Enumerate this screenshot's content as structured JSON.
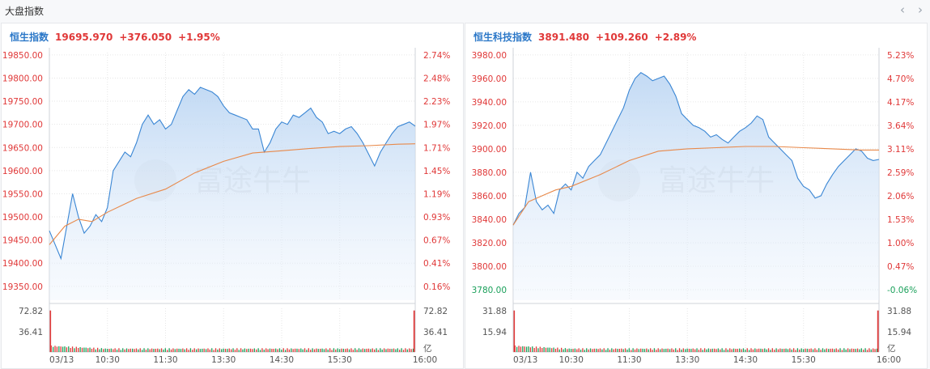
{
  "header": {
    "title": "大盘指数",
    "prev_icon": "chevron-left-icon",
    "next_icon": "chevron-right-icon"
  },
  "watermark": "富途牛牛",
  "colors": {
    "up": "#e03838",
    "down": "#1aa05a",
    "line": "#3a86d4",
    "avg": "#e8894a",
    "grid": "#e6e6e6",
    "name": "#2c78c8"
  },
  "chart_data": [
    {
      "type": "line",
      "name": "恒生指数",
      "last": "19695.970",
      "change": "+376.050",
      "change_pct": "+1.95%",
      "y_ticks": [
        "19850.00",
        "19800.00",
        "19750.00",
        "19700.00",
        "19650.00",
        "19600.00",
        "19550.00",
        "19500.00",
        "19450.00",
        "19400.00",
        "19350.00"
      ],
      "pct_ticks": [
        "2.74%",
        "2.48%",
        "2.23%",
        "1.97%",
        "1.71%",
        "1.45%",
        "1.19%",
        "0.93%",
        "0.67%",
        "0.41%",
        "0.16%"
      ],
      "pct_colors": [
        "up",
        "up",
        "up",
        "up",
        "up",
        "up",
        "up",
        "up",
        "up",
        "up",
        "up"
      ],
      "ylim": [
        19320,
        19855
      ],
      "x_ticks": [
        "03/13",
        "10:30",
        "11:30",
        "13:30",
        "14:30",
        "15:30",
        "16:00"
      ],
      "price": [
        [
          0,
          19470
        ],
        [
          3,
          19440
        ],
        [
          6,
          19410
        ],
        [
          9,
          19480
        ],
        [
          12,
          19550
        ],
        [
          15,
          19500
        ],
        [
          18,
          19465
        ],
        [
          21,
          19480
        ],
        [
          24,
          19505
        ],
        [
          27,
          19490
        ],
        [
          30,
          19520
        ],
        [
          33,
          19600
        ],
        [
          36,
          19620
        ],
        [
          39,
          19640
        ],
        [
          42,
          19630
        ],
        [
          45,
          19660
        ],
        [
          48,
          19700
        ],
        [
          51,
          19720
        ],
        [
          54,
          19700
        ],
        [
          57,
          19710
        ],
        [
          60,
          19690
        ],
        [
          63,
          19700
        ],
        [
          66,
          19730
        ],
        [
          69,
          19760
        ],
        [
          72,
          19775
        ],
        [
          75,
          19765
        ],
        [
          78,
          19780
        ],
        [
          81,
          19775
        ],
        [
          84,
          19770
        ],
        [
          87,
          19760
        ],
        [
          90,
          19740
        ],
        [
          93,
          19725
        ],
        [
          96,
          19720
        ],
        [
          99,
          19715
        ],
        [
          102,
          19710
        ],
        [
          105,
          19690
        ],
        [
          108,
          19690
        ],
        [
          111,
          19640
        ],
        [
          114,
          19660
        ],
        [
          117,
          19690
        ],
        [
          120,
          19705
        ],
        [
          123,
          19700
        ],
        [
          126,
          19720
        ],
        [
          129,
          19715
        ],
        [
          132,
          19725
        ],
        [
          135,
          19735
        ],
        [
          138,
          19715
        ],
        [
          141,
          19705
        ],
        [
          144,
          19680
        ],
        [
          147,
          19685
        ],
        [
          150,
          19680
        ],
        [
          153,
          19690
        ],
        [
          156,
          19695
        ],
        [
          159,
          19680
        ],
        [
          162,
          19660
        ],
        [
          165,
          19635
        ],
        [
          168,
          19610
        ],
        [
          171,
          19640
        ],
        [
          174,
          19660
        ],
        [
          177,
          19680
        ],
        [
          180,
          19695
        ],
        [
          183,
          19700
        ],
        [
          186,
          19705
        ],
        [
          189,
          19696
        ]
      ],
      "avg": [
        [
          0,
          19440
        ],
        [
          8,
          19480
        ],
        [
          15,
          19495
        ],
        [
          22,
          19490
        ],
        [
          30,
          19510
        ],
        [
          45,
          19540
        ],
        [
          60,
          19560
        ],
        [
          75,
          19595
        ],
        [
          90,
          19620
        ],
        [
          105,
          19638
        ],
        [
          120,
          19643
        ],
        [
          135,
          19648
        ],
        [
          150,
          19652
        ],
        [
          165,
          19654
        ],
        [
          180,
          19657
        ],
        [
          189,
          19658
        ]
      ],
      "vol_ticks": [
        "72.82",
        "36.41"
      ],
      "vol_max": 72.82,
      "vol_unit": "亿",
      "vol_first": 72.82,
      "vol_last": 72.82
    },
    {
      "type": "line",
      "name": "恒生科技指数",
      "last": "3891.480",
      "change": "+109.260",
      "change_pct": "+2.89%",
      "y_ticks": [
        "3980.00",
        "3960.00",
        "3940.00",
        "3920.00",
        "3900.00",
        "3880.00",
        "3860.00",
        "3840.00",
        "3820.00",
        "3800.00",
        "3780.00"
      ],
      "pct_ticks": [
        "5.23%",
        "4.70%",
        "4.17%",
        "3.64%",
        "3.11%",
        "2.59%",
        "2.06%",
        "1.53%",
        "1.00%",
        "0.47%",
        "-0.06%"
      ],
      "pct_colors": [
        "up",
        "up",
        "up",
        "up",
        "up",
        "up",
        "up",
        "up",
        "up",
        "up",
        "down"
      ],
      "ylim": [
        3771,
        3982
      ],
      "x_ticks": [
        "03/13",
        "10:30",
        "11:30",
        "13:30",
        "14:30",
        "15:30",
        "16:00"
      ],
      "price": [
        [
          0,
          3835
        ],
        [
          3,
          3845
        ],
        [
          6,
          3850
        ],
        [
          9,
          3880
        ],
        [
          12,
          3855
        ],
        [
          15,
          3848
        ],
        [
          18,
          3852
        ],
        [
          21,
          3845
        ],
        [
          24,
          3865
        ],
        [
          27,
          3870
        ],
        [
          30,
          3865
        ],
        [
          33,
          3880
        ],
        [
          36,
          3875
        ],
        [
          39,
          3885
        ],
        [
          42,
          3890
        ],
        [
          45,
          3895
        ],
        [
          48,
          3905
        ],
        [
          51,
          3915
        ],
        [
          54,
          3925
        ],
        [
          57,
          3935
        ],
        [
          60,
          3950
        ],
        [
          63,
          3960
        ],
        [
          66,
          3965
        ],
        [
          69,
          3962
        ],
        [
          72,
          3958
        ],
        [
          75,
          3960
        ],
        [
          78,
          3962
        ],
        [
          81,
          3955
        ],
        [
          84,
          3945
        ],
        [
          87,
          3930
        ],
        [
          90,
          3925
        ],
        [
          93,
          3920
        ],
        [
          96,
          3918
        ],
        [
          99,
          3915
        ],
        [
          102,
          3910
        ],
        [
          105,
          3912
        ],
        [
          108,
          3908
        ],
        [
          111,
          3905
        ],
        [
          114,
          3910
        ],
        [
          117,
          3915
        ],
        [
          120,
          3918
        ],
        [
          123,
          3922
        ],
        [
          126,
          3928
        ],
        [
          129,
          3925
        ],
        [
          132,
          3910
        ],
        [
          135,
          3905
        ],
        [
          138,
          3900
        ],
        [
          141,
          3895
        ],
        [
          144,
          3890
        ],
        [
          147,
          3875
        ],
        [
          150,
          3868
        ],
        [
          153,
          3865
        ],
        [
          156,
          3858
        ],
        [
          159,
          3860
        ],
        [
          162,
          3870
        ],
        [
          165,
          3878
        ],
        [
          168,
          3885
        ],
        [
          171,
          3890
        ],
        [
          174,
          3895
        ],
        [
          177,
          3900
        ],
        [
          180,
          3898
        ],
        [
          183,
          3892
        ],
        [
          186,
          3890
        ],
        [
          189,
          3891
        ]
      ],
      "avg": [
        [
          0,
          3835
        ],
        [
          8,
          3855
        ],
        [
          15,
          3860
        ],
        [
          22,
          3865
        ],
        [
          30,
          3868
        ],
        [
          45,
          3878
        ],
        [
          60,
          3890
        ],
        [
          75,
          3898
        ],
        [
          90,
          3900
        ],
        [
          105,
          3901
        ],
        [
          120,
          3902
        ],
        [
          135,
          3902
        ],
        [
          150,
          3901
        ],
        [
          165,
          3900
        ],
        [
          180,
          3899
        ],
        [
          189,
          3899
        ]
      ],
      "vol_ticks": [
        "31.88",
        "15.94"
      ],
      "vol_max": 31.88,
      "vol_unit": "亿",
      "vol_first": 31.88,
      "vol_last": 31.88
    }
  ]
}
